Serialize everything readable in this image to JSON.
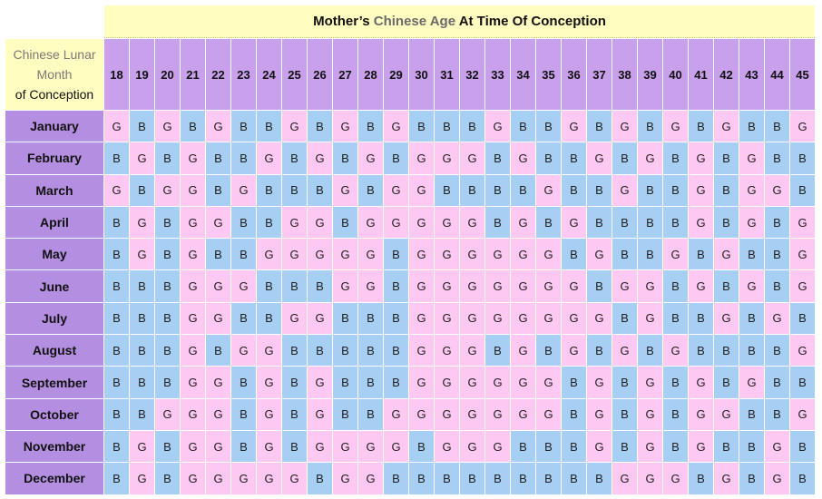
{
  "title": {
    "pre": "Mother’s ",
    "highlight": "Chinese Age",
    "post": " At Time Of Conception"
  },
  "corner": {
    "line1": "Chinese Lunar",
    "line2": "Month",
    "line3": "of Conception"
  },
  "ages": [
    "18",
    "19",
    "20",
    "21",
    "22",
    "23",
    "24",
    "25",
    "26",
    "27",
    "28",
    "29",
    "30",
    "31",
    "32",
    "33",
    "34",
    "35",
    "36",
    "37",
    "38",
    "39",
    "40",
    "41",
    "42",
    "43",
    "44",
    "45"
  ],
  "colors": {
    "boy": "#a6cff3",
    "girl": "#fdc8f1",
    "header": "#c8a0ec",
    "month": "#b48ee0",
    "title": "#fffdc0"
  },
  "rows": [
    {
      "month": "January",
      "values": [
        "G",
        "B",
        "G",
        "B",
        "G",
        "B",
        "B",
        "G",
        "B",
        "G",
        "B",
        "G",
        "B",
        "B",
        "B",
        "G",
        "B",
        "B",
        "G",
        "B",
        "G",
        "B",
        "G",
        "B",
        "G",
        "B",
        "B",
        "G"
      ]
    },
    {
      "month": "February",
      "values": [
        "B",
        "G",
        "B",
        "G",
        "B",
        "B",
        "G",
        "B",
        "G",
        "B",
        "G",
        "B",
        "G",
        "G",
        "G",
        "B",
        "G",
        "B",
        "B",
        "G",
        "B",
        "G",
        "B",
        "G",
        "B",
        "G",
        "B",
        "B"
      ]
    },
    {
      "month": "March",
      "values": [
        "G",
        "B",
        "G",
        "G",
        "B",
        "G",
        "B",
        "B",
        "B",
        "G",
        "B",
        "G",
        "G",
        "B",
        "B",
        "B",
        "B",
        "G",
        "B",
        "B",
        "G",
        "B",
        "B",
        "G",
        "B",
        "G",
        "G",
        "B"
      ]
    },
    {
      "month": "April",
      "values": [
        "B",
        "G",
        "B",
        "G",
        "G",
        "B",
        "B",
        "G",
        "G",
        "B",
        "G",
        "G",
        "G",
        "G",
        "G",
        "B",
        "G",
        "B",
        "G",
        "B",
        "B",
        "B",
        "B",
        "G",
        "B",
        "G",
        "B",
        "G"
      ]
    },
    {
      "month": "May",
      "values": [
        "B",
        "G",
        "B",
        "G",
        "B",
        "B",
        "G",
        "G",
        "G",
        "G",
        "G",
        "B",
        "G",
        "G",
        "G",
        "G",
        "G",
        "G",
        "B",
        "G",
        "B",
        "B",
        "G",
        "B",
        "G",
        "B",
        "B",
        "G"
      ]
    },
    {
      "month": "June",
      "values": [
        "B",
        "B",
        "B",
        "G",
        "G",
        "G",
        "B",
        "B",
        "B",
        "G",
        "G",
        "B",
        "G",
        "G",
        "G",
        "G",
        "G",
        "G",
        "G",
        "B",
        "G",
        "G",
        "B",
        "G",
        "B",
        "G",
        "B",
        "G"
      ]
    },
    {
      "month": "July",
      "values": [
        "B",
        "B",
        "B",
        "G",
        "G",
        "B",
        "B",
        "G",
        "G",
        "B",
        "B",
        "B",
        "G",
        "G",
        "G",
        "G",
        "G",
        "G",
        "G",
        "G",
        "B",
        "G",
        "B",
        "B",
        "G",
        "B",
        "G",
        "B"
      ]
    },
    {
      "month": "August",
      "values": [
        "B",
        "B",
        "B",
        "G",
        "B",
        "G",
        "G",
        "B",
        "B",
        "B",
        "B",
        "B",
        "G",
        "G",
        "G",
        "B",
        "G",
        "B",
        "G",
        "B",
        "G",
        "B",
        "G",
        "B",
        "B",
        "B",
        "B",
        "G"
      ]
    },
    {
      "month": "September",
      "values": [
        "B",
        "B",
        "B",
        "G",
        "G",
        "B",
        "G",
        "B",
        "G",
        "B",
        "B",
        "B",
        "G",
        "G",
        "G",
        "G",
        "G",
        "G",
        "B",
        "G",
        "B",
        "G",
        "B",
        "G",
        "B",
        "G",
        "B",
        "B"
      ]
    },
    {
      "month": "October",
      "values": [
        "B",
        "B",
        "G",
        "G",
        "G",
        "B",
        "G",
        "B",
        "G",
        "B",
        "B",
        "G",
        "G",
        "G",
        "G",
        "G",
        "G",
        "G",
        "B",
        "G",
        "B",
        "G",
        "B",
        "G",
        "G",
        "B",
        "B",
        "G"
      ]
    },
    {
      "month": "November",
      "values": [
        "B",
        "G",
        "B",
        "G",
        "G",
        "B",
        "G",
        "B",
        "G",
        "G",
        "G",
        "G",
        "B",
        "G",
        "G",
        "G",
        "B",
        "B",
        "B",
        "G",
        "B",
        "G",
        "B",
        "G",
        "B",
        "B",
        "G",
        "B"
      ]
    },
    {
      "month": "December",
      "values": [
        "B",
        "G",
        "B",
        "G",
        "G",
        "G",
        "G",
        "G",
        "B",
        "G",
        "G",
        "B",
        "B",
        "B",
        "B",
        "B",
        "B",
        "B",
        "B",
        "B",
        "G",
        "G",
        "G",
        "B",
        "G",
        "B",
        "G",
        "B"
      ]
    }
  ]
}
